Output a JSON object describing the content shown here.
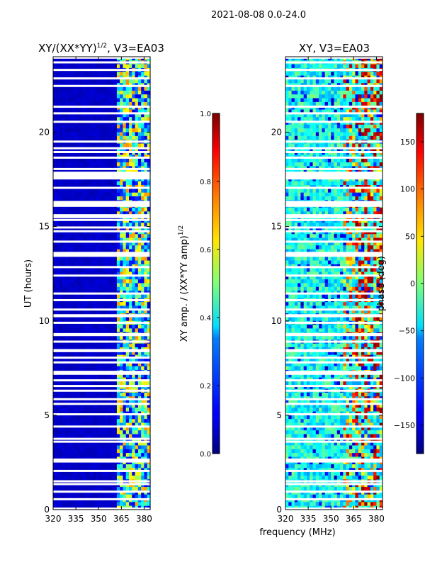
{
  "page_title": "2021-08-08 0.0-24.0",
  "common_xlabel": "frequency (MHz)",
  "chart_data": [
    {
      "type": "heatmap",
      "title_main": "XY/(XX*YY)",
      "title_sup": "1/2",
      "title_tail": ", V3=EA03",
      "xlabel": "",
      "ylabel": "UT (hours)",
      "xlim": [
        320,
        384
      ],
      "ylim": [
        0,
        24
      ],
      "xticks": [
        "320",
        "335",
        "350",
        "365",
        "380"
      ],
      "xtick_values": [
        320,
        335,
        350,
        365,
        380
      ],
      "yticks": [
        "0",
        "5",
        "10",
        "15",
        "20"
      ],
      "ytick_values": [
        0,
        5,
        10,
        15,
        20
      ],
      "colorbar": {
        "label_main": "XY amp. / (XX*YY amp)",
        "label_sup": "1/2",
        "range": [
          0.0,
          1.0
        ],
        "ticks": [
          "0.0",
          "0.2",
          "0.4",
          "0.6",
          "0.8",
          "1.0"
        ],
        "tick_values": [
          0.0,
          0.2,
          0.4,
          0.6,
          0.8,
          1.0
        ]
      },
      "band_start_mhz": 362,
      "background_value": 0.05,
      "band_value_range": [
        0.2,
        0.75
      ]
    },
    {
      "type": "heatmap",
      "title_main": "XY, V3=EA03",
      "title_sup": "",
      "title_tail": "",
      "xlabel": "",
      "ylabel": "",
      "xlim": [
        320,
        384
      ],
      "ylim": [
        0,
        24
      ],
      "xticks": [
        "320",
        "335",
        "350",
        "365",
        "380"
      ],
      "xtick_values": [
        320,
        335,
        350,
        365,
        380
      ],
      "yticks": [
        "0",
        "5",
        "10",
        "15",
        "20"
      ],
      "ytick_values": [
        0,
        5,
        10,
        15,
        20
      ],
      "colorbar": {
        "label_main": "phase (deg)",
        "label_sup": "",
        "range": [
          -180,
          180
        ],
        "ticks": [
          "−150",
          "−100",
          "−50",
          "0",
          "50",
          "100",
          "150"
        ],
        "tick_values": [
          -150,
          -100,
          -50,
          0,
          50,
          100,
          150
        ]
      }
    }
  ],
  "flagged_hours": [
    0.05,
    0.55,
    0.95,
    1.35,
    1.5,
    2.05,
    2.55,
    2.65,
    3.6,
    3.75,
    4.4,
    5.05,
    5.6,
    5.85,
    6.3,
    6.55,
    6.85,
    7.2,
    7.3,
    7.8,
    8.05,
    8.4,
    8.45,
    8.9,
    9.25,
    9.3,
    9.9,
    10.25,
    10.3,
    10.6,
    11.1,
    11.45,
    12.4,
    12.85,
    13.45,
    13.55,
    13.6,
    14.2,
    14.75,
    14.95,
    15.35,
    15.5,
    15.6,
    16.1,
    16.2,
    16.3,
    17.05,
    17.55,
    17.65,
    17.75,
    17.85,
    18.05,
    18.65,
    18.95,
    19.15,
    19.5,
    20.55,
    21.0,
    21.35,
    22.45,
    22.85,
    23.3,
    23.7,
    23.95
  ]
}
